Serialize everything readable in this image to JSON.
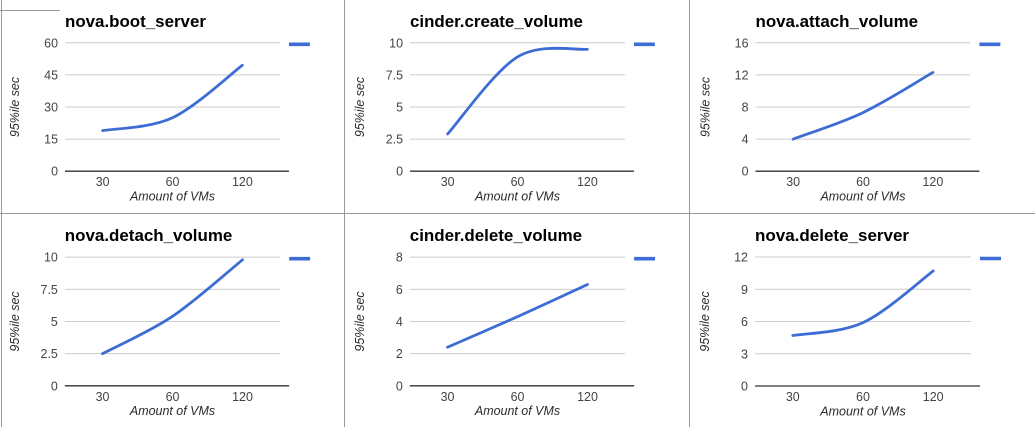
{
  "colors": {
    "series_line": "#3d6cd4",
    "gridline": "#cccccc",
    "baseline": "#333333",
    "tick_label": "#444444",
    "cell_border": "#999999",
    "background": "#ffffff"
  },
  "grid_layout_note": "2 rows x 3 columns of line charts",
  "chart_data": [
    {
      "type": "line",
      "title": "nova.boot_server",
      "categories": [
        "30",
        "60",
        "120"
      ],
      "values": [
        19,
        25,
        49.5
      ],
      "xlabel": "Amount of VMs",
      "ylabel": "95%ile sec",
      "yticks": [
        0,
        15,
        30,
        45,
        60
      ],
      "ylim": [
        0,
        60
      ],
      "grid": true,
      "legend_position": "right-top",
      "legend_label": ""
    },
    {
      "type": "line",
      "title": "cinder.create_volume",
      "categories": [
        "30",
        "60",
        "120"
      ],
      "values": [
        2.9,
        8.9,
        9.5
      ],
      "xlabel": "Amount of VMs",
      "ylabel": "95%ile sec",
      "yticks": [
        0,
        2.5,
        5,
        7.5,
        10
      ],
      "ylim": [
        0,
        10
      ],
      "grid": true,
      "legend_position": "right-top",
      "legend_label": ""
    },
    {
      "type": "line",
      "title": "nova.attach_volume",
      "categories": [
        "30",
        "60",
        "120"
      ],
      "values": [
        4,
        7.3,
        12.3
      ],
      "xlabel": "Amount of VMs",
      "ylabel": "95%ile sec",
      "yticks": [
        0,
        4,
        8,
        12,
        16
      ],
      "ylim": [
        0,
        16
      ],
      "grid": true,
      "legend_position": "right-top",
      "legend_label": ""
    },
    {
      "type": "line",
      "title": "nova.detach_volume",
      "categories": [
        "30",
        "60",
        "120"
      ],
      "values": [
        2.5,
        5.4,
        9.8
      ],
      "xlabel": "Amount of VMs",
      "ylabel": "95%ile sec",
      "yticks": [
        0,
        2.5,
        5,
        7.5,
        10
      ],
      "ylim": [
        0,
        10
      ],
      "grid": true,
      "legend_position": "right-top",
      "legend_label": ""
    },
    {
      "type": "line",
      "title": "cinder.delete_volume",
      "categories": [
        "30",
        "60",
        "120"
      ],
      "values": [
        2.4,
        4.3,
        6.3
      ],
      "xlabel": "Amount of VMs",
      "ylabel": "95%ile sec",
      "yticks": [
        0,
        2,
        4,
        6,
        8
      ],
      "ylim": [
        0,
        8
      ],
      "grid": true,
      "legend_position": "right-top",
      "legend_label": ""
    },
    {
      "type": "line",
      "title": "nova.delete_server",
      "categories": [
        "30",
        "60",
        "120"
      ],
      "values": [
        4.7,
        5.9,
        10.7
      ],
      "xlabel": "Amount of VMs",
      "ylabel": "95%ile sec",
      "yticks": [
        0,
        3,
        6,
        9,
        12
      ],
      "ylim": [
        0,
        12
      ],
      "grid": true,
      "legend_position": "right-top",
      "legend_label": ""
    }
  ]
}
